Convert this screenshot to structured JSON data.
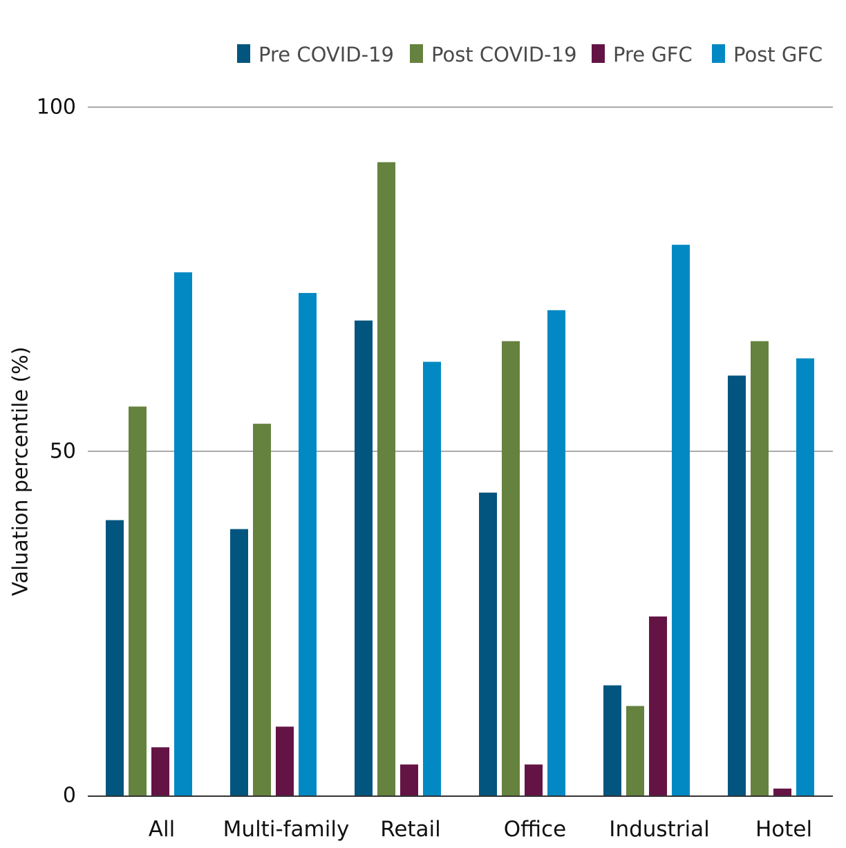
{
  "chart_data": {
    "type": "bar",
    "title": "",
    "xlabel": "",
    "ylabel": "Valuation percentile (%)",
    "ylim": [
      0,
      100
    ],
    "yticks": [
      0,
      50,
      100
    ],
    "grid": true,
    "legend_position": "top-right",
    "categories": [
      "All",
      "Multi-family",
      "Retail",
      "Office",
      "Industrial",
      "Hotel"
    ],
    "series": [
      {
        "name": "Pre COVID-19",
        "color": "#02557e",
        "values": [
          40,
          38.7,
          69,
          44,
          16,
          61
        ]
      },
      {
        "name": "Post COVID-19",
        "color": "#65823e",
        "values": [
          56.5,
          54,
          92,
          66,
          13,
          66
        ]
      },
      {
        "name": "Pre GFC",
        "color": "#641444",
        "values": [
          7,
          10,
          4.5,
          4.5,
          26,
          1
        ]
      },
      {
        "name": "Post GFC",
        "color": "#0289c3",
        "values": [
          76,
          73,
          63,
          70.5,
          80,
          63.5
        ]
      }
    ]
  }
}
